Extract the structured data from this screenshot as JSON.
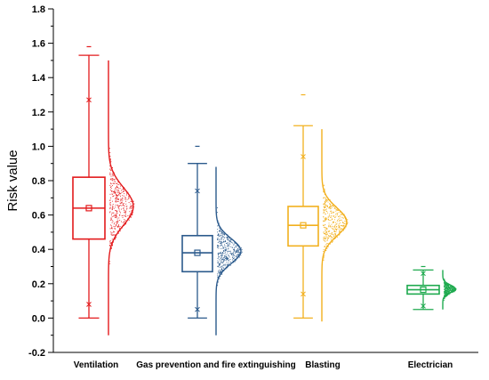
{
  "chart_data": {
    "type": "box-half-violin",
    "ylabel": "Risk value",
    "ylim": [
      -0.2,
      1.8
    ],
    "yticks": [
      "-0.2",
      "0.0",
      "0.2",
      "0.4",
      "0.6",
      "0.8",
      "1.0",
      "1.2",
      "1.4",
      "1.6",
      "1.8"
    ],
    "yminor_step": 0.1,
    "grid": false,
    "categories": [
      "Ventilation",
      "Gas prevention and fire extinguishing",
      "Blasting",
      "Electrician"
    ],
    "series": [
      {
        "category": "Ventilation",
        "color": "#e31a1c",
        "whisker_low": 0.0,
        "q1": 0.46,
        "median": 0.64,
        "mean": 0.64,
        "q3": 0.82,
        "whisker_high": 1.53,
        "p1": 0.08,
        "p99": 1.27,
        "outliers": [
          1.58
        ],
        "violin_min": -0.1,
        "violin_max": 1.5,
        "violin_mode": 0.65,
        "violin_spread": 0.24
      },
      {
        "category": "Gas prevention and fire extinguishing",
        "color": "#2b5a8c",
        "whisker_low": 0.0,
        "q1": 0.27,
        "median": 0.38,
        "mean": 0.38,
        "q3": 0.48,
        "whisker_high": 0.9,
        "p1": 0.05,
        "p99": 0.74,
        "outliers": [
          1.0
        ],
        "violin_min": -0.1,
        "violin_max": 0.88,
        "violin_mode": 0.39,
        "violin_spread": 0.16
      },
      {
        "category": "Blasting",
        "color": "#f2b01e",
        "whisker_low": 0.0,
        "q1": 0.42,
        "median": 0.54,
        "mean": 0.54,
        "q3": 0.65,
        "whisker_high": 1.12,
        "p1": 0.14,
        "p99": 0.94,
        "outliers": [
          1.3
        ],
        "violin_min": -0.02,
        "violin_max": 1.1,
        "violin_mode": 0.56,
        "violin_spread": 0.18
      },
      {
        "category": "Electrician",
        "color": "#1faa4f",
        "whisker_low": 0.05,
        "q1": 0.14,
        "median": 0.165,
        "mean": 0.165,
        "q3": 0.19,
        "whisker_high": 0.28,
        "p1": 0.07,
        "p99": 0.26,
        "outliers": [
          0.3
        ],
        "violin_min": 0.05,
        "violin_max": 0.28,
        "violin_mode": 0.17,
        "violin_spread": 0.05
      }
    ]
  }
}
